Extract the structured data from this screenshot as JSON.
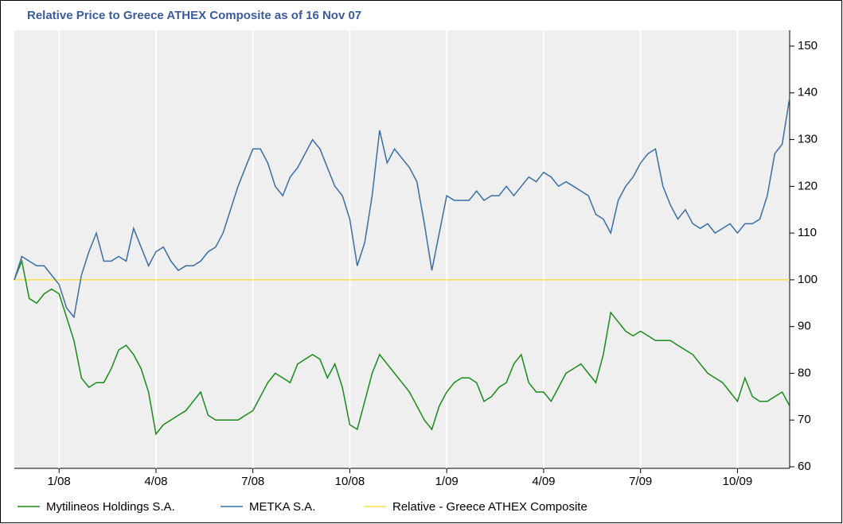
{
  "chart_data": {
    "type": "line",
    "title": "Relative Price to Greece ATHEX Composite as of 16 Nov 07",
    "categories": [
      null,
      null,
      null,
      null,
      null,
      null,
      "1/08",
      null,
      null,
      null,
      null,
      null,
      null,
      null,
      null,
      null,
      null,
      null,
      null,
      "4/08",
      null,
      null,
      null,
      null,
      null,
      null,
      null,
      null,
      null,
      null,
      null,
      null,
      "7/08",
      null,
      null,
      null,
      null,
      null,
      null,
      null,
      null,
      null,
      null,
      null,
      null,
      "10/08",
      null,
      null,
      null,
      null,
      null,
      null,
      null,
      null,
      null,
      null,
      null,
      null,
      "1/09",
      null,
      null,
      null,
      null,
      null,
      null,
      null,
      null,
      null,
      null,
      null,
      null,
      "4/09",
      null,
      null,
      null,
      null,
      null,
      null,
      null,
      null,
      null,
      null,
      null,
      null,
      "7/09",
      null,
      null,
      null,
      null,
      null,
      null,
      null,
      null,
      null,
      null,
      null,
      null,
      "10/09",
      null,
      null,
      null,
      null,
      null,
      null,
      null
    ],
    "series": [
      {
        "name": "Mytilineos Holdings S.A.",
        "color": "#1a8a1a",
        "values": [
          100,
          104,
          96,
          95,
          97,
          98,
          97,
          92,
          87,
          79,
          77,
          78,
          78,
          81,
          85,
          86,
          84,
          81,
          76,
          67,
          69,
          70,
          71,
          72,
          74,
          76,
          71,
          70,
          70,
          70,
          70,
          71,
          72,
          75,
          78,
          80,
          79,
          78,
          82,
          83,
          84,
          83,
          79,
          82,
          77,
          69,
          68,
          74,
          80,
          84,
          82,
          80,
          78,
          76,
          73,
          70,
          68,
          73,
          76,
          78,
          79,
          79,
          78,
          74,
          75,
          77,
          78,
          82,
          84,
          78,
          76,
          76,
          74,
          77,
          80,
          81,
          82,
          80,
          78,
          84,
          93,
          91,
          89,
          88,
          89,
          88,
          87,
          87,
          87,
          86,
          85,
          84,
          82,
          80,
          79,
          78,
          76,
          74,
          79,
          75,
          74,
          74,
          75,
          76,
          73
        ]
      },
      {
        "name": "METKA S.A.",
        "color": "#3a6ea5",
        "values": [
          100,
          105,
          104,
          103,
          103,
          101,
          99,
          94,
          92,
          101,
          106,
          110,
          104,
          104,
          105,
          104,
          111,
          107,
          103,
          106,
          107,
          104,
          102,
          103,
          103,
          104,
          106,
          107,
          110,
          115,
          120,
          124,
          128,
          128,
          125,
          120,
          118,
          122,
          124,
          127,
          130,
          128,
          124,
          120,
          118,
          113,
          103,
          108,
          118,
          132,
          125,
          128,
          126,
          124,
          121,
          112,
          102,
          110,
          118,
          117,
          117,
          117,
          119,
          117,
          118,
          118,
          120,
          118,
          120,
          122,
          121,
          123,
          122,
          120,
          121,
          120,
          119,
          118,
          114,
          113,
          110,
          117,
          120,
          122,
          125,
          127,
          128,
          120,
          116,
          113,
          115,
          112,
          111,
          112,
          110,
          111,
          112,
          110,
          112,
          112,
          113,
          118,
          127,
          129,
          139
        ]
      },
      {
        "name": "Relative - Greece ATHEX Composite",
        "color": "#f5e04a",
        "values": [
          100,
          100,
          100,
          100,
          100,
          100,
          100,
          100,
          100,
          100,
          100,
          100,
          100,
          100,
          100,
          100,
          100,
          100,
          100,
          100,
          100,
          100,
          100,
          100,
          100,
          100,
          100,
          100,
          100,
          100,
          100,
          100,
          100,
          100,
          100,
          100,
          100,
          100,
          100,
          100,
          100,
          100,
          100,
          100,
          100,
          100,
          100,
          100,
          100,
          100,
          100,
          100,
          100,
          100,
          100,
          100,
          100,
          100,
          100,
          100,
          100,
          100,
          100,
          100,
          100,
          100,
          100,
          100,
          100,
          100,
          100,
          100,
          100,
          100,
          100,
          100,
          100,
          100,
          100,
          100,
          100,
          100,
          100,
          100,
          100,
          100,
          100,
          100,
          100,
          100,
          100,
          100,
          100,
          100,
          100,
          100,
          100,
          100,
          100,
          100,
          100,
          100,
          100,
          100,
          100
        ]
      }
    ],
    "ylim": [
      60,
      150
    ],
    "yticks": [
      60,
      70,
      80,
      90,
      100,
      110,
      120,
      130,
      140,
      150
    ],
    "grid": true
  }
}
